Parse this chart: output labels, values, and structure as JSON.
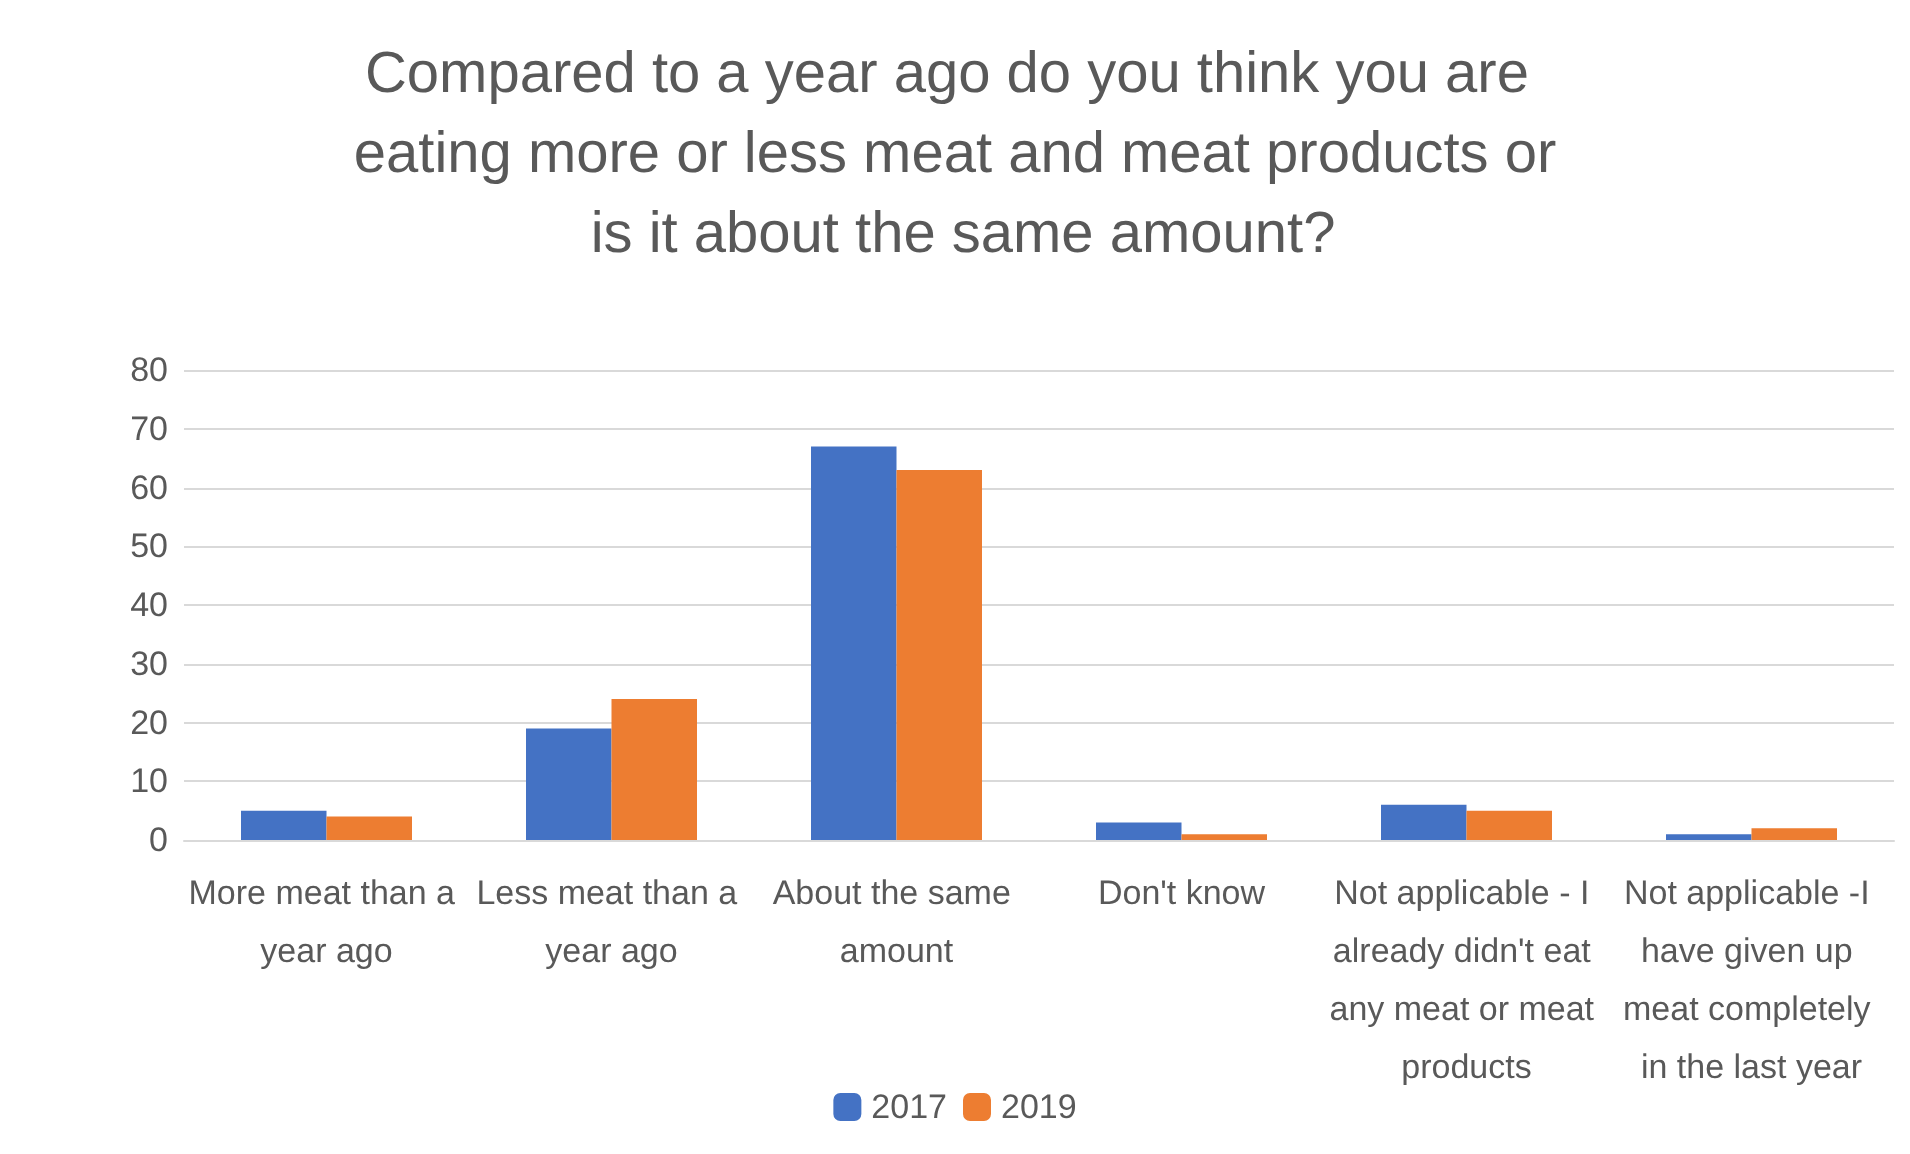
{
  "chart_data": {
    "type": "bar",
    "title": "Compared to a year ago do you think you are eating more or less meat and meat products or is it about the same amount?",
    "categories": [
      "More meat than a year ago",
      "Less meat than a year ago",
      "About the same amount",
      "Don't know",
      "Not applicable - I already didn't eat any meat or meat products",
      "Not applicable -I have given up meat completely in the last year"
    ],
    "series": [
      {
        "name": "2017",
        "color": "#4472c4",
        "values": [
          5,
          19,
          67,
          3,
          6,
          1
        ]
      },
      {
        "name": "2019",
        "color": "#ed7d31",
        "values": [
          4,
          24,
          63,
          1,
          5,
          2
        ]
      }
    ],
    "ylim": [
      0,
      80
    ],
    "yticks": [
      0,
      10,
      20,
      30,
      40,
      50,
      60,
      70,
      80
    ],
    "grid": "y",
    "legend": "bottom"
  }
}
